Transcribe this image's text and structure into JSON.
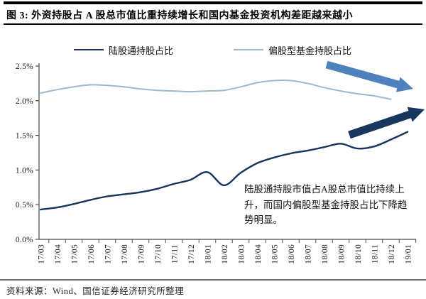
{
  "title": "图 3: 外资持股占 A 股总市值比重持续增长和国内基金投资机构差距越来越小",
  "source_note": "资料来源：Wind、国信证券经济研究所整理",
  "annotation": "陆股通持股市值占A股总市值比持续上升，而国内偏股型基金持股占比下降趋势明显。",
  "colors": {
    "dark_series": "#17355a",
    "light_series": "#9db7d3",
    "arrow_dark": "#17375e",
    "arrow_light": "#4f81bd",
    "axis": "#4a4a4a",
    "title_bar": "#000000"
  },
  "chart_data": {
    "type": "line",
    "x": [
      "17/03",
      "17/04",
      "17/05",
      "17/06",
      "17/07",
      "17/08",
      "17/09",
      "17/10",
      "17/11",
      "17/12",
      "18/01",
      "18/02",
      "18/03",
      "18/04",
      "18/05",
      "18/06",
      "18/07",
      "18/08",
      "18/09",
      "18/10",
      "18/11",
      "18/12",
      "19/01"
    ],
    "series": [
      {
        "name": "陆股通持股占比",
        "color": "#17355a",
        "values": [
          0.43,
          0.46,
          0.51,
          0.57,
          0.62,
          0.65,
          0.68,
          0.73,
          0.8,
          0.86,
          0.97,
          0.78,
          0.96,
          1.1,
          1.18,
          1.24,
          1.28,
          1.33,
          1.38,
          1.31,
          1.34,
          1.44,
          1.55
        ]
      },
      {
        "name": "偏股型基金持股占比",
        "color": "#9db7d3",
        "values": [
          2.11,
          2.16,
          2.2,
          2.23,
          2.22,
          2.2,
          2.17,
          2.15,
          2.14,
          2.13,
          2.14,
          2.15,
          2.2,
          2.26,
          2.29,
          2.29,
          2.25,
          2.19,
          2.14,
          2.1,
          2.07,
          2.02,
          null
        ]
      }
    ],
    "ylim": [
      0,
      2.5
    ],
    "yticks": [
      "0.0%",
      "0.5%",
      "1.0%",
      "1.5%",
      "2.0%",
      "2.5%"
    ],
    "xlabel": "",
    "ylabel": "",
    "grid": false,
    "legend_position": "top",
    "annotations": [
      "light-blue arrow trending down-right over fund series",
      "dark navy arrow trending up-right over northbound series"
    ]
  }
}
